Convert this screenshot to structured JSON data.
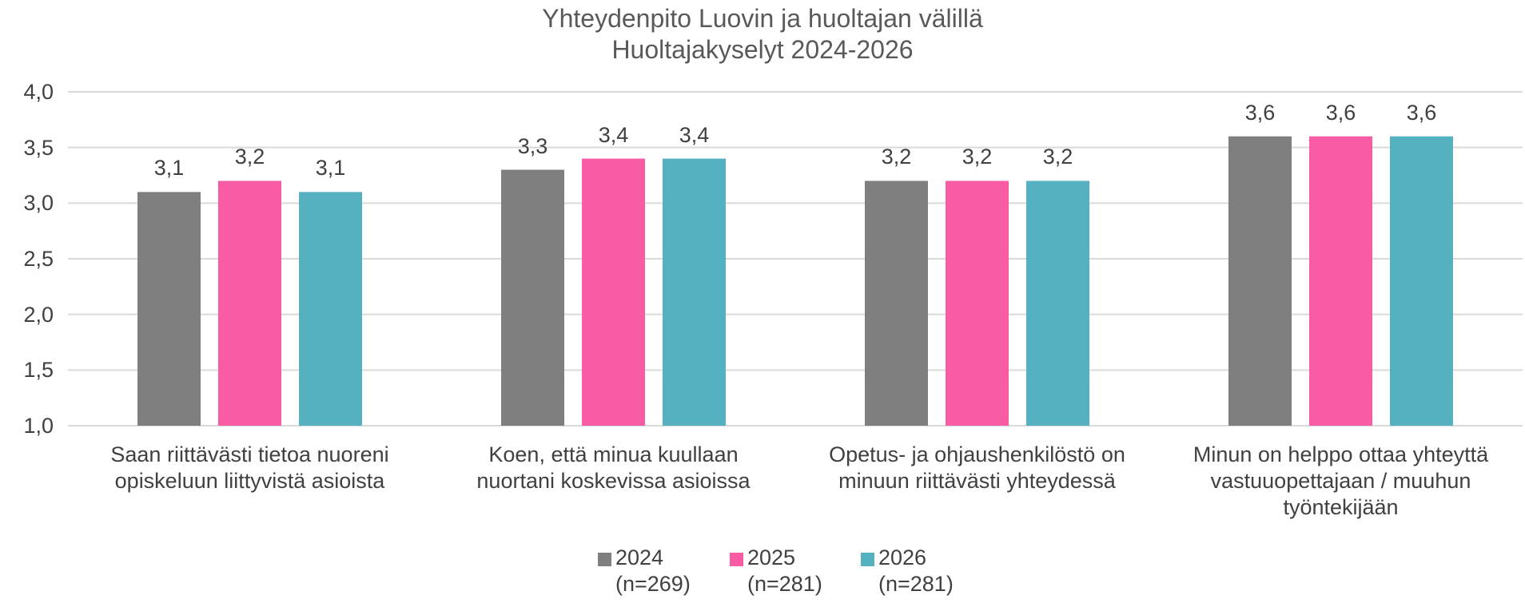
{
  "chart_data": {
    "type": "bar",
    "title": "Yhteydenpito Luovin ja huoltajan välillä\nHuoltajakyselyt 2024-2026",
    "categories": [
      "Saan riittävästi tietoa nuoreni\nopiskeluun liittyvistä asioista",
      "Koen, että minua kuullaan\nnuortani koskevissa asioissa",
      "Opetus- ja ohjaushenkilöstö on\nminuun riittävästi yhteydessä",
      "Minun on helppo ottaa yhteyttä\nvastuuopettajaan / muuhun\ntyöntekijään"
    ],
    "series": [
      {
        "name": "2024\n(n=269)",
        "color": "#7f7f7f",
        "values": [
          3.1,
          3.3,
          3.2,
          3.6
        ],
        "value_labels": [
          "3,1",
          "3,3",
          "3,2",
          "3,6"
        ]
      },
      {
        "name": "2025\n(n=281)",
        "color": "#f95ca5",
        "values": [
          3.2,
          3.4,
          3.2,
          3.6
        ],
        "value_labels": [
          "3,2",
          "3,4",
          "3,2",
          "3,6"
        ]
      },
      {
        "name": "2026\n(n=281)",
        "color": "#55b0bf",
        "values": [
          3.1,
          3.4,
          3.2,
          3.6
        ],
        "value_labels": [
          "3,1",
          "3,4",
          "3,2",
          "3,6"
        ]
      }
    ],
    "ylim": [
      1,
      4
    ],
    "yticks": [
      {
        "value": 1,
        "label": "1,0"
      },
      {
        "value": 1.5,
        "label": "1,5"
      },
      {
        "value": 2,
        "label": "2,0"
      },
      {
        "value": 2.5,
        "label": "2,5"
      },
      {
        "value": 3,
        "label": "3,0"
      },
      {
        "value": 3.5,
        "label": "3,5"
      },
      {
        "value": 4,
        "label": "4,0"
      }
    ],
    "grid": true,
    "legend": "bottom"
  }
}
